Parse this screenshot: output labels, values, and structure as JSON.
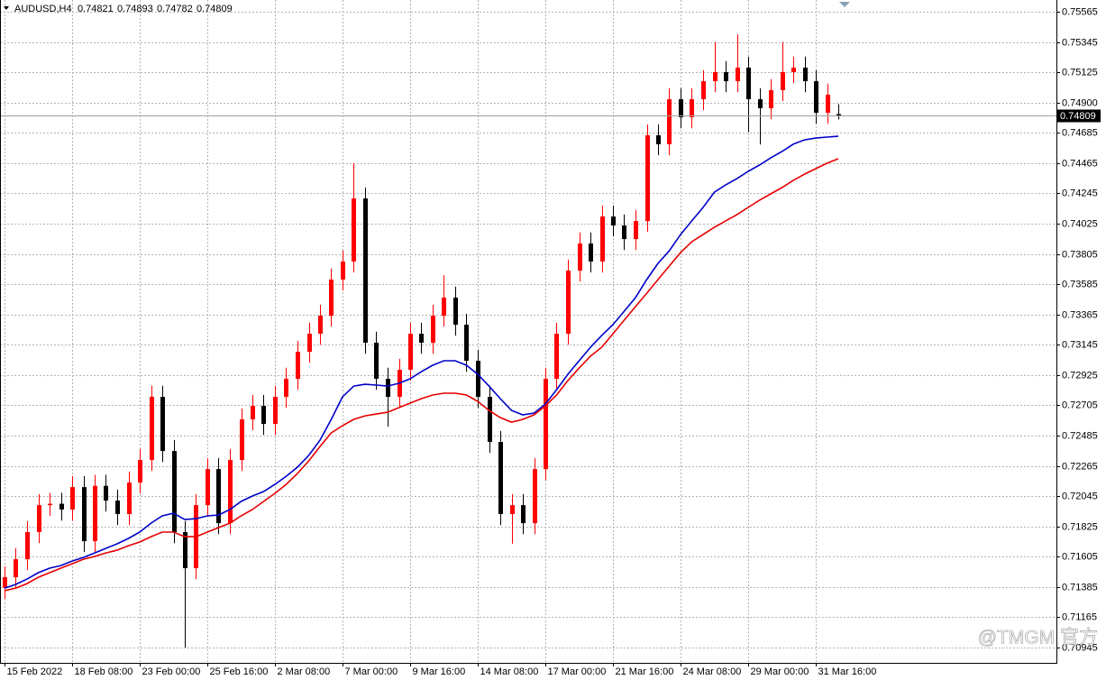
{
  "chart_data": {
    "type": "candlestick",
    "title": "AUDUSD,H4",
    "watermark": "@TMGM 官方",
    "grid": true,
    "up_color": "#ff0000",
    "down_color": "#000000",
    "ohlc": {
      "open": [
        0.7138,
        0.71456,
        0.71587,
        0.71784,
        0.7198,
        0.7199,
        0.71948,
        0.72111,
        0.71718,
        0.7212,
        0.72013,
        0.71915,
        0.72144,
        0.72308,
        0.72767,
        0.72373,
        0.71784,
        0.71522,
        0.7198,
        0.72242,
        0.71849,
        0.72308,
        0.72603,
        0.72701,
        0.7257,
        0.72767,
        0.72898,
        0.73094,
        0.73225,
        0.73356,
        0.73619,
        0.7375,
        0.74208,
        0.7316,
        0.72898,
        0.72767,
        0.72963,
        0.73225,
        0.7316,
        0.73356,
        0.73488,
        0.73291,
        0.73029,
        0.72767,
        0.72439,
        0.71915,
        0.7198,
        0.71849,
        0.72242,
        0.72898,
        0.73225,
        0.73684,
        0.73881,
        0.7375,
        0.74077,
        0.74012,
        0.73913,
        0.74044,
        0.74667,
        0.74602,
        0.74929,
        0.74798,
        0.74929,
        0.7506,
        0.75126,
        0.7506,
        0.75159,
        0.74929,
        0.74864,
        0.74995,
        0.75126,
        0.75159,
        0.7506,
        0.74831,
        0.74821
      ],
      "high": [
        0.71536,
        0.71667,
        0.71864,
        0.7206,
        0.7207,
        0.7207,
        0.72191,
        0.72191,
        0.722,
        0.722,
        0.72093,
        0.72224,
        0.72388,
        0.72847,
        0.72847,
        0.72453,
        0.71864,
        0.7206,
        0.72322,
        0.72322,
        0.72388,
        0.72683,
        0.72781,
        0.72781,
        0.72847,
        0.72978,
        0.73174,
        0.73305,
        0.73436,
        0.73699,
        0.7383,
        0.74465,
        0.74288,
        0.7324,
        0.72978,
        0.73043,
        0.73305,
        0.73305,
        0.73436,
        0.7365,
        0.73568,
        0.73371,
        0.73109,
        0.72847,
        0.72519,
        0.7206,
        0.7206,
        0.72322,
        0.72978,
        0.73305,
        0.73764,
        0.73961,
        0.73961,
        0.74157,
        0.74157,
        0.74092,
        0.74124,
        0.74747,
        0.74747,
        0.75009,
        0.75009,
        0.75009,
        0.7514,
        0.75345,
        0.75206,
        0.754,
        0.75239,
        0.75009,
        0.75075,
        0.75345,
        0.75239,
        0.75239,
        0.7514,
        0.75042,
        0.74893
      ],
      "low": [
        0.713,
        0.71376,
        0.71507,
        0.71704,
        0.719,
        0.71868,
        0.71868,
        0.71638,
        0.71638,
        0.71933,
        0.71835,
        0.71835,
        0.72064,
        0.72228,
        0.72293,
        0.71704,
        0.70945,
        0.71442,
        0.719,
        0.71769,
        0.71769,
        0.72228,
        0.72523,
        0.7249,
        0.7249,
        0.72687,
        0.72818,
        0.73014,
        0.73145,
        0.73276,
        0.73539,
        0.7367,
        0.7308,
        0.72818,
        0.7255,
        0.72687,
        0.72883,
        0.7308,
        0.7308,
        0.73276,
        0.73211,
        0.72949,
        0.72687,
        0.72359,
        0.71835,
        0.717,
        0.71769,
        0.71769,
        0.72162,
        0.72818,
        0.73145,
        0.73604,
        0.7367,
        0.7367,
        0.73932,
        0.73833,
        0.73833,
        0.73964,
        0.74522,
        0.74522,
        0.74718,
        0.74718,
        0.74849,
        0.7498,
        0.7498,
        0.7498,
        0.7469,
        0.746,
        0.74784,
        0.74915,
        0.75046,
        0.7498,
        0.74751,
        0.74751,
        0.74782
      ],
      "close": [
        0.71456,
        0.71587,
        0.71784,
        0.7198,
        0.7199,
        0.71948,
        0.72111,
        0.71718,
        0.7212,
        0.72013,
        0.71915,
        0.72144,
        0.72308,
        0.72767,
        0.72373,
        0.71784,
        0.71522,
        0.7198,
        0.72242,
        0.71849,
        0.72308,
        0.72603,
        0.72701,
        0.7257,
        0.72767,
        0.72898,
        0.73094,
        0.73225,
        0.73356,
        0.73619,
        0.7375,
        0.74208,
        0.7316,
        0.72898,
        0.72767,
        0.72963,
        0.73225,
        0.7316,
        0.73356,
        0.73488,
        0.73291,
        0.73029,
        0.72767,
        0.72439,
        0.71915,
        0.7198,
        0.71849,
        0.72242,
        0.72898,
        0.73225,
        0.73684,
        0.73881,
        0.7375,
        0.74077,
        0.74012,
        0.73913,
        0.74044,
        0.74667,
        0.74602,
        0.74929,
        0.74798,
        0.74929,
        0.7506,
        0.75126,
        0.7506,
        0.75159,
        0.74929,
        0.74864,
        0.74995,
        0.75126,
        0.75159,
        0.7506,
        0.74831,
        0.74962,
        0.74809
      ]
    },
    "ma": [
      {
        "color": "#0000c8",
        "values": [
          0.71377,
          0.71404,
          0.71443,
          0.71489,
          0.71522,
          0.71541,
          0.71574,
          0.716,
          0.71633,
          0.71666,
          0.71699,
          0.71738,
          0.71784,
          0.71849,
          0.71902,
          0.71921,
          0.71875,
          0.71882,
          0.71902,
          0.71908,
          0.71948,
          0.72007,
          0.72046,
          0.72079,
          0.72131,
          0.7219,
          0.72256,
          0.72341,
          0.72452,
          0.72603,
          0.72767,
          0.72845,
          0.72858,
          0.72852,
          0.72845,
          0.72865,
          0.72898,
          0.7295,
          0.72996,
          0.73029,
          0.73029,
          0.72996,
          0.72931,
          0.72845,
          0.72754,
          0.72668,
          0.72636,
          0.72649,
          0.72714,
          0.72819,
          0.72931,
          0.73029,
          0.73127,
          0.73212,
          0.73291,
          0.73389,
          0.73488,
          0.73619,
          0.73737,
          0.73828,
          0.73946,
          0.74045,
          0.74143,
          0.74254,
          0.74307,
          0.74352,
          0.74405,
          0.74451,
          0.74503,
          0.74549,
          0.74602,
          0.74634,
          0.74647,
          0.74654,
          0.7466
        ]
      },
      {
        "color": "#e60000",
        "values": [
          0.71358,
          0.71377,
          0.7141,
          0.71456,
          0.71489,
          0.71522,
          0.71554,
          0.71587,
          0.71607,
          0.71633,
          0.71653,
          0.71685,
          0.71712,
          0.71751,
          0.71784,
          0.71784,
          0.71751,
          0.71751,
          0.71784,
          0.71817,
          0.71849,
          0.71902,
          0.71948,
          0.72007,
          0.72066,
          0.72131,
          0.7221,
          0.72301,
          0.72406,
          0.72505,
          0.72557,
          0.72603,
          0.72629,
          0.72642,
          0.72655,
          0.72688,
          0.72721,
          0.72754,
          0.7278,
          0.72793,
          0.72793,
          0.7278,
          0.72734,
          0.72668,
          0.72616,
          0.72583,
          0.72603,
          0.72636,
          0.72701,
          0.7278,
          0.72885,
          0.72976,
          0.73062,
          0.73127,
          0.73225,
          0.73324,
          0.73422,
          0.7352,
          0.73619,
          0.73717,
          0.73815,
          0.73894,
          0.73946,
          0.73999,
          0.74045,
          0.7409,
          0.74143,
          0.74195,
          0.74241,
          0.74287,
          0.74339,
          0.74385,
          0.74425,
          0.74464,
          0.74497
        ]
      }
    ],
    "xlim": [
      -0.4,
      93.36
    ],
    "ylim": [
      0.70834,
      0.7565
    ],
    "yticks": [
      0.75565,
      0.75345,
      0.75125,
      {
        "value": 0.749,
        "label": "0.74900"
      },
      0.74685,
      0.74465,
      0.74245,
      0.74025,
      0.73805,
      0.73585,
      0.73365,
      0.73145,
      0.72925,
      0.72705,
      0.72485,
      0.72265,
      0.72045,
      0.71825,
      0.71605,
      0.71385,
      0.71165,
      0.70945
    ],
    "xticks": [
      {
        "value": 0,
        "label": "15 Feb 2022"
      },
      {
        "value": 6,
        "label": "18 Feb 08:00"
      },
      {
        "value": 12,
        "label": "23 Feb 00:00"
      },
      {
        "value": 18,
        "label": "25 Feb 16:00"
      },
      {
        "value": 24,
        "label": "2 Mar 08:00"
      },
      {
        "value": 30,
        "label": "7 Mar 00:00"
      },
      {
        "value": 36,
        "label": "9 Mar 16:00"
      },
      {
        "value": 42,
        "label": "14 Mar 08:00"
      },
      {
        "value": 48,
        "label": "17 Mar 00:00"
      },
      {
        "value": 54,
        "label": "21 Mar 16:00"
      },
      {
        "value": 60,
        "label": "24 Mar 08:00"
      },
      {
        "value": 66,
        "label": "29 Mar 00:00"
      },
      {
        "value": 72,
        "label": "31 Mar 16:00"
      }
    ]
  }
}
